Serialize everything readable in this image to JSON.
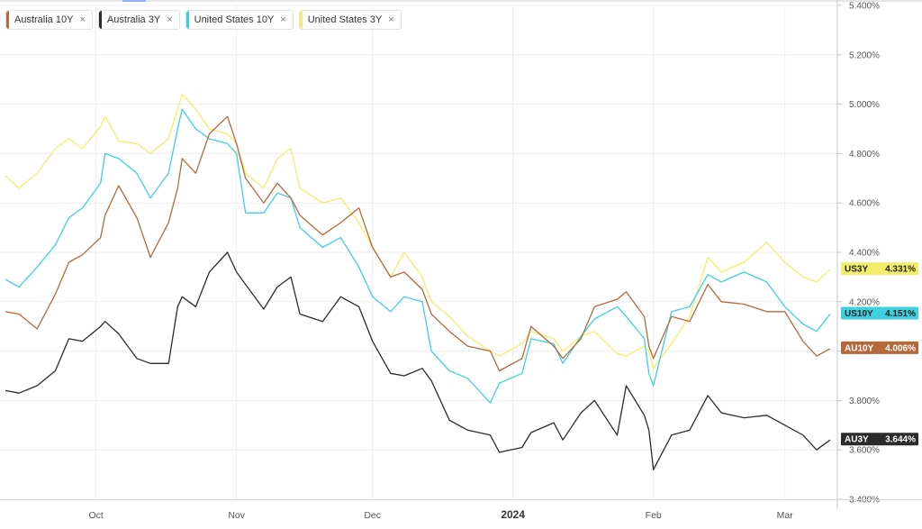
{
  "legend": [
    {
      "label": "Australia 10Y",
      "close": "×",
      "color": "#b5693b"
    },
    {
      "label": "Australia 3Y",
      "close": "×",
      "color": "#2b2b2b"
    },
    {
      "label": "United States 10Y",
      "close": "×",
      "color": "#3fd0e0"
    },
    {
      "label": "United States 3Y",
      "close": "×",
      "color": "#f1ee6a"
    }
  ],
  "chart_data": {
    "type": "line",
    "title": "",
    "xlabel": "",
    "ylabel": "",
    "ylim": [
      3.4,
      5.4
    ],
    "y_ticks": [
      "3.400%",
      "3.600%",
      "3.800%",
      "4.000%",
      "4.200%",
      "4.400%",
      "4.600%",
      "4.800%",
      "5.000%",
      "5.200%",
      "5.400%"
    ],
    "y_tick_values": [
      3.4,
      3.6,
      3.8,
      4.0,
      4.2,
      4.4,
      4.6,
      4.8,
      5.0,
      5.2,
      5.4
    ],
    "x_ticks": [
      "Oct",
      "Nov",
      "Dec",
      "2024",
      "Feb",
      "Mar"
    ],
    "x_tick_dates": [
      "2023-10-01",
      "2023-11-01",
      "2023-12-01",
      "2024-01-01",
      "2024-02-01",
      "2024-03-01"
    ],
    "x_range": [
      "2023-09-11",
      "2024-03-11"
    ],
    "grid": true,
    "legend_position": "top-left",
    "end_labels": [
      {
        "tag": "US3Y",
        "value": "4.331%",
        "color": "#f1ee6a",
        "text_color": "#222222"
      },
      {
        "tag": "US10Y",
        "value": "4.151%",
        "color": "#3fd0e0",
        "text_color": "#222222"
      },
      {
        "tag": "AU10Y",
        "value": "4.006%",
        "color": "#b5693b",
        "text_color": "#ffffff"
      },
      {
        "tag": "AU3Y",
        "value": "3.644%",
        "color": "#2b2b2b",
        "text_color": "#ffffff"
      }
    ],
    "series": [
      {
        "name": "United States 3Y",
        "color": "#f1ee6a",
        "points": [
          [
            "2023-09-11",
            4.71
          ],
          [
            "2023-09-14",
            4.66
          ],
          [
            "2023-09-18",
            4.72
          ],
          [
            "2023-09-22",
            4.82
          ],
          [
            "2023-09-25",
            4.86
          ],
          [
            "2023-09-28",
            4.82
          ],
          [
            "2023-10-02",
            4.91
          ],
          [
            "2023-10-03",
            4.95
          ],
          [
            "2023-10-06",
            4.85
          ],
          [
            "2023-10-10",
            4.84
          ],
          [
            "2023-10-13",
            4.8
          ],
          [
            "2023-10-17",
            4.86
          ],
          [
            "2023-10-19",
            4.98
          ],
          [
            "2023-10-20",
            5.04
          ],
          [
            "2023-10-23",
            4.98
          ],
          [
            "2023-10-26",
            4.9
          ],
          [
            "2023-10-30",
            4.88
          ],
          [
            "2023-11-01",
            4.84
          ],
          [
            "2023-11-03",
            4.72
          ],
          [
            "2023-11-07",
            4.66
          ],
          [
            "2023-11-10",
            4.78
          ],
          [
            "2023-11-13",
            4.82
          ],
          [
            "2023-11-15",
            4.66
          ],
          [
            "2023-11-20",
            4.6
          ],
          [
            "2023-11-24",
            4.62
          ],
          [
            "2023-11-28",
            4.52
          ],
          [
            "2023-12-01",
            4.42
          ],
          [
            "2023-12-05",
            4.3
          ],
          [
            "2023-12-08",
            4.4
          ],
          [
            "2023-12-12",
            4.3
          ],
          [
            "2023-12-14",
            4.2
          ],
          [
            "2023-12-18",
            4.14
          ],
          [
            "2023-12-22",
            4.06
          ],
          [
            "2023-12-27",
            4.0
          ],
          [
            "2023-12-29",
            3.98
          ],
          [
            "2024-01-03",
            4.03
          ],
          [
            "2024-01-05",
            4.08
          ],
          [
            "2024-01-10",
            4.05
          ],
          [
            "2024-01-12",
            4.0
          ],
          [
            "2024-01-16",
            4.06
          ],
          [
            "2024-01-19",
            4.08
          ],
          [
            "2024-01-24",
            3.99
          ],
          [
            "2024-01-26",
            3.98
          ],
          [
            "2024-01-30",
            4.02
          ],
          [
            "2024-01-31",
            4.0
          ],
          [
            "2024-02-01",
            3.93
          ],
          [
            "2024-02-05",
            4.03
          ],
          [
            "2024-02-09",
            4.14
          ],
          [
            "2024-02-13",
            4.38
          ],
          [
            "2024-02-16",
            4.32
          ],
          [
            "2024-02-21",
            4.36
          ],
          [
            "2024-02-26",
            4.44
          ],
          [
            "2024-03-01",
            4.36
          ],
          [
            "2024-03-05",
            4.3
          ],
          [
            "2024-03-08",
            4.28
          ],
          [
            "2024-03-11",
            4.33
          ]
        ]
      },
      {
        "name": "United States 10Y",
        "color": "#3fd0e0",
        "points": [
          [
            "2023-09-11",
            4.29
          ],
          [
            "2023-09-14",
            4.26
          ],
          [
            "2023-09-18",
            4.34
          ],
          [
            "2023-09-22",
            4.43
          ],
          [
            "2023-09-25",
            4.54
          ],
          [
            "2023-09-28",
            4.58
          ],
          [
            "2023-10-02",
            4.68
          ],
          [
            "2023-10-03",
            4.8
          ],
          [
            "2023-10-06",
            4.78
          ],
          [
            "2023-10-10",
            4.72
          ],
          [
            "2023-10-13",
            4.62
          ],
          [
            "2023-10-17",
            4.72
          ],
          [
            "2023-10-19",
            4.9
          ],
          [
            "2023-10-20",
            4.98
          ],
          [
            "2023-10-23",
            4.9
          ],
          [
            "2023-10-26",
            4.86
          ],
          [
            "2023-10-30",
            4.84
          ],
          [
            "2023-11-01",
            4.8
          ],
          [
            "2023-11-03",
            4.56
          ],
          [
            "2023-11-07",
            4.56
          ],
          [
            "2023-11-10",
            4.64
          ],
          [
            "2023-11-13",
            4.62
          ],
          [
            "2023-11-15",
            4.5
          ],
          [
            "2023-11-20",
            4.42
          ],
          [
            "2023-11-24",
            4.46
          ],
          [
            "2023-11-28",
            4.34
          ],
          [
            "2023-12-01",
            4.22
          ],
          [
            "2023-12-05",
            4.16
          ],
          [
            "2023-12-08",
            4.22
          ],
          [
            "2023-12-12",
            4.2
          ],
          [
            "2023-12-14",
            4.0
          ],
          [
            "2023-12-18",
            3.92
          ],
          [
            "2023-12-22",
            3.89
          ],
          [
            "2023-12-27",
            3.79
          ],
          [
            "2023-12-29",
            3.87
          ],
          [
            "2024-01-03",
            3.91
          ],
          [
            "2024-01-05",
            4.05
          ],
          [
            "2024-01-10",
            4.03
          ],
          [
            "2024-01-12",
            3.95
          ],
          [
            "2024-01-16",
            4.06
          ],
          [
            "2024-01-19",
            4.13
          ],
          [
            "2024-01-24",
            4.18
          ],
          [
            "2024-01-26",
            4.14
          ],
          [
            "2024-01-30",
            4.05
          ],
          [
            "2024-01-31",
            3.91
          ],
          [
            "2024-02-01",
            3.86
          ],
          [
            "2024-02-05",
            4.16
          ],
          [
            "2024-02-09",
            4.18
          ],
          [
            "2024-02-13",
            4.31
          ],
          [
            "2024-02-16",
            4.28
          ],
          [
            "2024-02-21",
            4.32
          ],
          [
            "2024-02-26",
            4.28
          ],
          [
            "2024-03-01",
            4.18
          ],
          [
            "2024-03-05",
            4.11
          ],
          [
            "2024-03-08",
            4.08
          ],
          [
            "2024-03-11",
            4.15
          ]
        ]
      },
      {
        "name": "Australia 10Y",
        "color": "#b5693b",
        "points": [
          [
            "2023-09-11",
            4.16
          ],
          [
            "2023-09-14",
            4.15
          ],
          [
            "2023-09-18",
            4.09
          ],
          [
            "2023-09-22",
            4.23
          ],
          [
            "2023-09-25",
            4.36
          ],
          [
            "2023-09-28",
            4.39
          ],
          [
            "2023-10-02",
            4.46
          ],
          [
            "2023-10-03",
            4.55
          ],
          [
            "2023-10-06",
            4.67
          ],
          [
            "2023-10-10",
            4.54
          ],
          [
            "2023-10-13",
            4.38
          ],
          [
            "2023-10-17",
            4.52
          ],
          [
            "2023-10-19",
            4.66
          ],
          [
            "2023-10-20",
            4.78
          ],
          [
            "2023-10-23",
            4.72
          ],
          [
            "2023-10-26",
            4.88
          ],
          [
            "2023-10-30",
            4.95
          ],
          [
            "2023-11-01",
            4.84
          ],
          [
            "2023-11-03",
            4.7
          ],
          [
            "2023-11-07",
            4.6
          ],
          [
            "2023-11-10",
            4.68
          ],
          [
            "2023-11-13",
            4.62
          ],
          [
            "2023-11-15",
            4.55
          ],
          [
            "2023-11-20",
            4.47
          ],
          [
            "2023-11-24",
            4.52
          ],
          [
            "2023-11-28",
            4.58
          ],
          [
            "2023-12-01",
            4.42
          ],
          [
            "2023-12-05",
            4.3
          ],
          [
            "2023-12-08",
            4.32
          ],
          [
            "2023-12-12",
            4.25
          ],
          [
            "2023-12-14",
            4.15
          ],
          [
            "2023-12-18",
            4.08
          ],
          [
            "2023-12-22",
            4.02
          ],
          [
            "2023-12-27",
            4.0
          ],
          [
            "2023-12-29",
            3.92
          ],
          [
            "2024-01-03",
            3.97
          ],
          [
            "2024-01-05",
            4.1
          ],
          [
            "2024-01-10",
            4.02
          ],
          [
            "2024-01-12",
            3.97
          ],
          [
            "2024-01-16",
            4.05
          ],
          [
            "2024-01-19",
            4.18
          ],
          [
            "2024-01-24",
            4.21
          ],
          [
            "2024-01-26",
            4.24
          ],
          [
            "2024-01-30",
            4.14
          ],
          [
            "2024-01-31",
            4.02
          ],
          [
            "2024-02-01",
            3.97
          ],
          [
            "2024-02-05",
            4.14
          ],
          [
            "2024-02-09",
            4.12
          ],
          [
            "2024-02-13",
            4.27
          ],
          [
            "2024-02-16",
            4.2
          ],
          [
            "2024-02-21",
            4.19
          ],
          [
            "2024-02-26",
            4.16
          ],
          [
            "2024-03-01",
            4.16
          ],
          [
            "2024-03-05",
            4.04
          ],
          [
            "2024-03-08",
            3.98
          ],
          [
            "2024-03-11",
            4.01
          ]
        ]
      },
      {
        "name": "Australia 3Y",
        "color": "#2b2b2b",
        "points": [
          [
            "2023-09-11",
            3.84
          ],
          [
            "2023-09-14",
            3.83
          ],
          [
            "2023-09-18",
            3.86
          ],
          [
            "2023-09-22",
            3.92
          ],
          [
            "2023-09-25",
            4.05
          ],
          [
            "2023-09-28",
            4.04
          ],
          [
            "2023-10-02",
            4.1
          ],
          [
            "2023-10-03",
            4.12
          ],
          [
            "2023-10-06",
            4.07
          ],
          [
            "2023-10-10",
            3.97
          ],
          [
            "2023-10-13",
            3.95
          ],
          [
            "2023-10-17",
            3.95
          ],
          [
            "2023-10-19",
            4.18
          ],
          [
            "2023-10-20",
            4.22
          ],
          [
            "2023-10-23",
            4.18
          ],
          [
            "2023-10-26",
            4.32
          ],
          [
            "2023-10-30",
            4.4
          ],
          [
            "2023-11-01",
            4.32
          ],
          [
            "2023-11-03",
            4.27
          ],
          [
            "2023-11-07",
            4.17
          ],
          [
            "2023-11-10",
            4.26
          ],
          [
            "2023-11-13",
            4.3
          ],
          [
            "2023-11-15",
            4.15
          ],
          [
            "2023-11-20",
            4.12
          ],
          [
            "2023-11-24",
            4.22
          ],
          [
            "2023-11-28",
            4.18
          ],
          [
            "2023-12-01",
            4.04
          ],
          [
            "2023-12-05",
            3.91
          ],
          [
            "2023-12-08",
            3.9
          ],
          [
            "2023-12-12",
            3.93
          ],
          [
            "2023-12-14",
            3.88
          ],
          [
            "2023-12-18",
            3.72
          ],
          [
            "2023-12-22",
            3.68
          ],
          [
            "2023-12-27",
            3.66
          ],
          [
            "2023-12-29",
            3.59
          ],
          [
            "2024-01-03",
            3.61
          ],
          [
            "2024-01-05",
            3.67
          ],
          [
            "2024-01-10",
            3.71
          ],
          [
            "2024-01-12",
            3.64
          ],
          [
            "2024-01-16",
            3.75
          ],
          [
            "2024-01-19",
            3.8
          ],
          [
            "2024-01-24",
            3.66
          ],
          [
            "2024-01-26",
            3.86
          ],
          [
            "2024-01-30",
            3.74
          ],
          [
            "2024-01-31",
            3.68
          ],
          [
            "2024-02-01",
            3.52
          ],
          [
            "2024-02-05",
            3.66
          ],
          [
            "2024-02-09",
            3.68
          ],
          [
            "2024-02-13",
            3.82
          ],
          [
            "2024-02-16",
            3.75
          ],
          [
            "2024-02-21",
            3.73
          ],
          [
            "2024-02-26",
            3.74
          ],
          [
            "2024-03-01",
            3.7
          ],
          [
            "2024-03-05",
            3.66
          ],
          [
            "2024-03-08",
            3.6
          ],
          [
            "2024-03-11",
            3.64
          ]
        ]
      }
    ]
  }
}
